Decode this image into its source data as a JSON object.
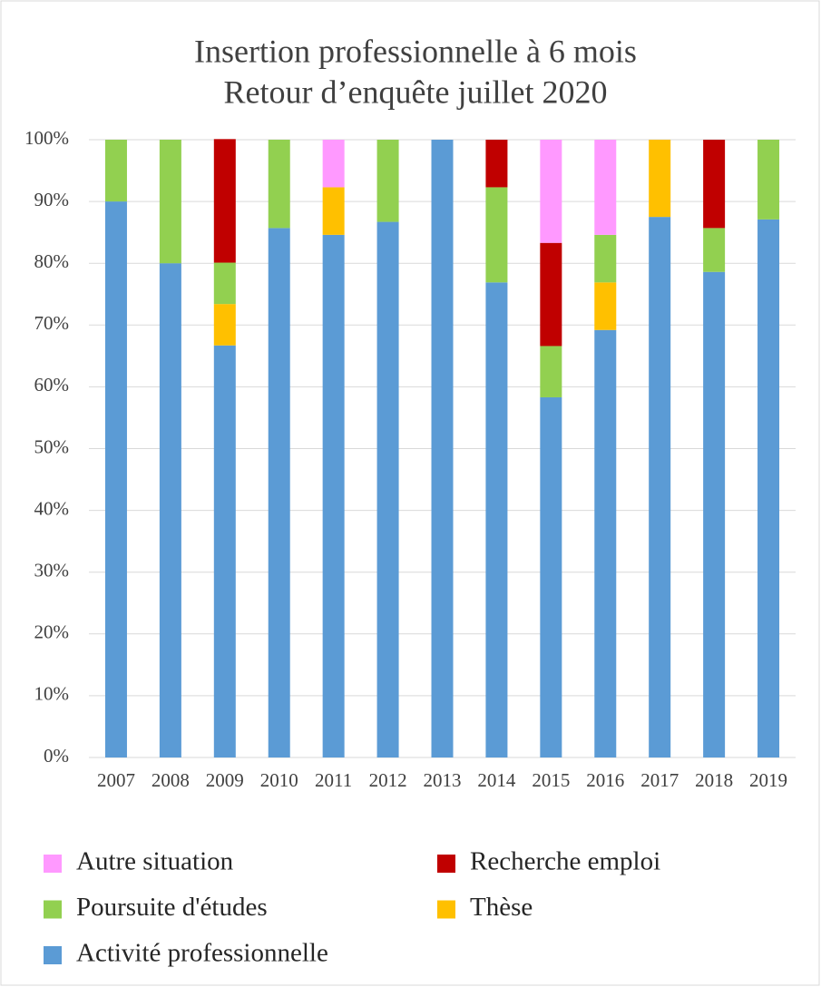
{
  "chart_data": {
    "type": "stacked_bar",
    "title": "Insertion professionnelle à 6 mois",
    "subtitle": "Retour d’enquête juillet 2020",
    "categories": [
      "2007",
      "2008",
      "2009",
      "2010",
      "2011",
      "2012",
      "2013",
      "2014",
      "2015",
      "2016",
      "2017",
      "2018",
      "2019"
    ],
    "series": [
      {
        "name": "Activité professionnelle",
        "color": "#5b9bd5",
        "values": [
          90,
          80,
          66.7,
          85.7,
          84.6,
          86.7,
          100,
          76.9,
          58.3,
          69.2,
          87.5,
          78.6,
          87.1
        ]
      },
      {
        "name": "Thèse",
        "color": "#ffc000",
        "values": [
          0,
          0,
          6.7,
          0,
          7.7,
          0,
          0,
          0,
          0,
          7.7,
          12.5,
          0,
          0
        ]
      },
      {
        "name": "Poursuite d'études",
        "color": "#92d050",
        "values": [
          10,
          20,
          6.7,
          14.3,
          0,
          13.3,
          0,
          15.4,
          8.3,
          7.7,
          0,
          7.1,
          12.9
        ]
      },
      {
        "name": "Recherche emploi",
        "color": "#c00000",
        "values": [
          0,
          0,
          20,
          0,
          0,
          0,
          0,
          7.7,
          16.7,
          0,
          0,
          14.3,
          0
        ]
      },
      {
        "name": "Autre situation",
        "color": "#ff99ff",
        "values": [
          0,
          0,
          0,
          0,
          7.7,
          0,
          0,
          0,
          16.7,
          15.4,
          0,
          0,
          0
        ]
      }
    ],
    "legend_order": [
      4,
      3,
      2,
      1,
      0
    ],
    "ylim": [
      0,
      100
    ],
    "yticks": [
      {
        "value": 0,
        "label": "0%"
      },
      {
        "value": 10,
        "label": "10%"
      },
      {
        "value": 20,
        "label": "20%"
      },
      {
        "value": 30,
        "label": "30%"
      },
      {
        "value": 40,
        "label": "40%"
      },
      {
        "value": 50,
        "label": "50%"
      },
      {
        "value": 60,
        "label": "60%"
      },
      {
        "value": 70,
        "label": "70%"
      },
      {
        "value": 80,
        "label": "80%"
      },
      {
        "value": 90,
        "label": "90%"
      },
      {
        "value": 100,
        "label": "100%"
      }
    ],
    "grid": true
  }
}
